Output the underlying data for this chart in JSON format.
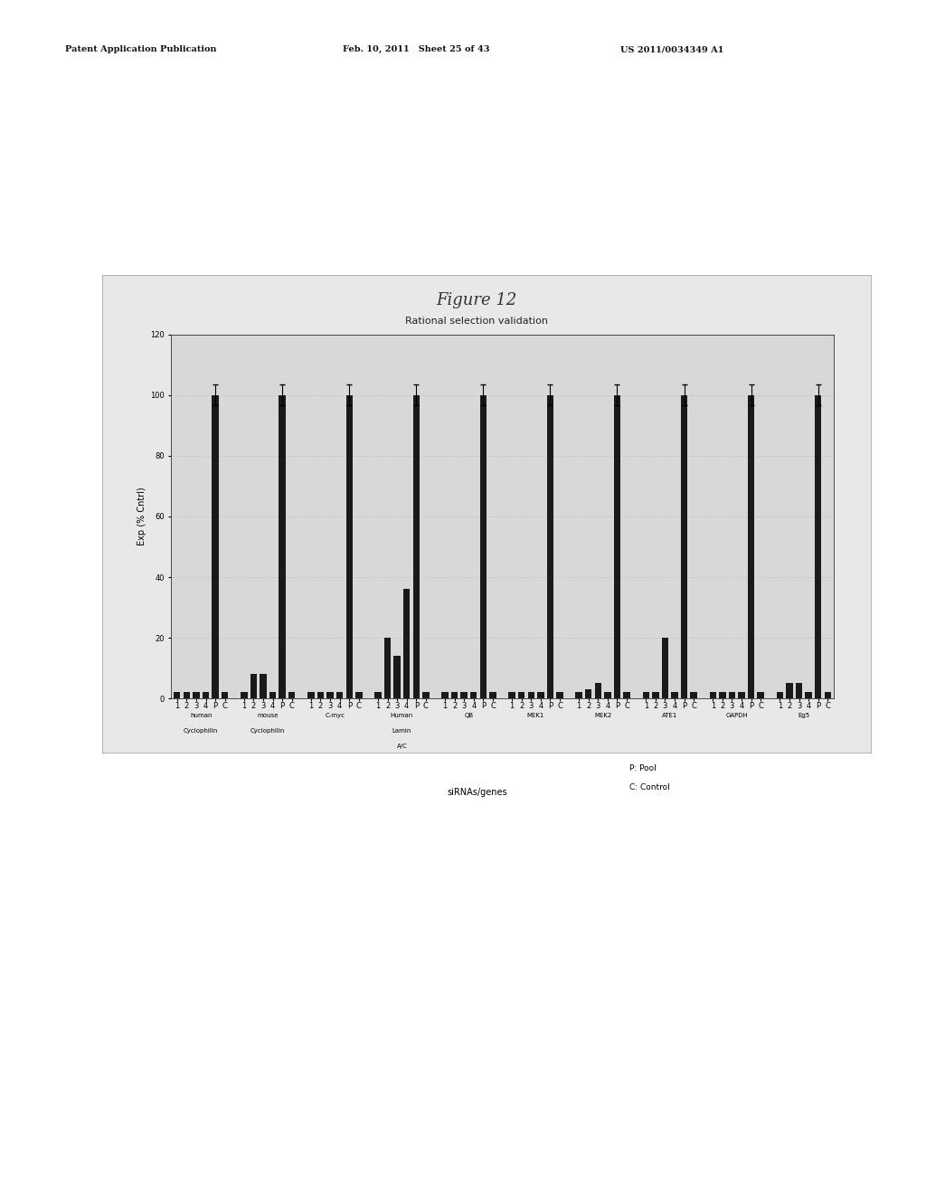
{
  "figure_title": "Figure 12",
  "chart_subtitle": "Rational selection validation",
  "ylabel": "Exp (% Cntrl)",
  "xlabel": "siRNAs/genes",
  "ylim": [
    0,
    120
  ],
  "yticks": [
    0,
    20,
    40,
    60,
    80,
    100,
    120
  ],
  "page_bg_color": "#f0f0f0",
  "chart_outer_bg": "#e8e8e8",
  "plot_bg_color": "#d8d8d8",
  "legend_text": [
    "P: Pool",
    "C: Control"
  ],
  "gene_groups": [
    {
      "name": "human\nCyclophilin",
      "labels": [
        "1",
        "2",
        "3",
        "4",
        "P",
        "C"
      ],
      "values": [
        2,
        2,
        2,
        2,
        100,
        2
      ]
    },
    {
      "name": "mouse\nCyclophilin",
      "labels": [
        "1",
        "2",
        "3",
        "4",
        "P",
        "C"
      ],
      "values": [
        2,
        8,
        8,
        2,
        100,
        2
      ]
    },
    {
      "name": "C-myc",
      "labels": [
        "1",
        "2",
        "3",
        "4",
        "P",
        "C"
      ],
      "values": [
        2,
        2,
        2,
        2,
        100,
        2
      ]
    },
    {
      "name": "Human\nLamin\nA/C",
      "labels": [
        "1",
        "2",
        "3",
        "4",
        "P",
        "C"
      ],
      "values": [
        2,
        20,
        14,
        36,
        100,
        2
      ]
    },
    {
      "name": "QB",
      "labels": [
        "1",
        "2",
        "3",
        "4",
        "P",
        "C"
      ],
      "values": [
        2,
        2,
        2,
        2,
        100,
        2
      ]
    },
    {
      "name": "MEK1",
      "labels": [
        "1",
        "2",
        "3",
        "4",
        "P",
        "C"
      ],
      "values": [
        2,
        2,
        2,
        2,
        100,
        2
      ]
    },
    {
      "name": "MEK2",
      "labels": [
        "1",
        "2",
        "3",
        "4",
        "P",
        "C"
      ],
      "values": [
        2,
        3,
        5,
        2,
        100,
        2
      ]
    },
    {
      "name": "ATE1",
      "labels": [
        "1",
        "2",
        "3",
        "4",
        "P",
        "C"
      ],
      "values": [
        2,
        2,
        20,
        2,
        100,
        2
      ]
    },
    {
      "name": "GAPDH",
      "labels": [
        "1",
        "2",
        "3",
        "4",
        "P",
        "C"
      ],
      "values": [
        2,
        2,
        2,
        2,
        100,
        2
      ]
    },
    {
      "name": "Eg5",
      "labels": [
        "1",
        "2",
        "3",
        "4",
        "P",
        "C"
      ],
      "values": [
        2,
        5,
        5,
        2,
        100,
        2
      ]
    }
  ],
  "bar_color": "#1a1a1a",
  "header_left": "Patent Application Publication",
  "header_mid": "Feb. 10, 2011   Sheet 25 of 43",
  "header_right": "US 2011/0034349 A1",
  "title_fontsize": 13,
  "subtitle_fontsize": 8,
  "axis_fontsize": 7,
  "tick_fontsize": 6,
  "label_fontsize": 6,
  "header_fontsize": 7
}
